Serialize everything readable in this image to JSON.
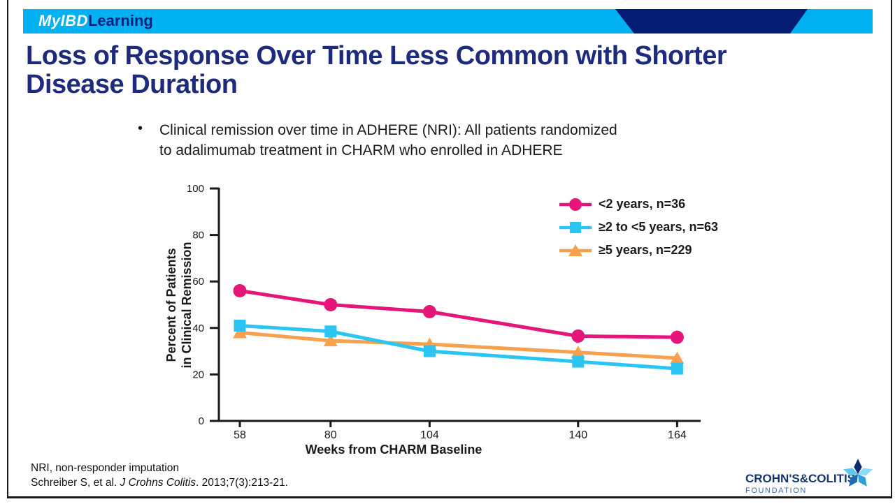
{
  "header": {
    "logo_my_ibd": "MyIBD",
    "logo_learning": "Learning",
    "bar_color": "#00b0f0",
    "shape_color": "#041d74"
  },
  "title": {
    "line1": "Loss of Response Over Time Less Common with Shorter",
    "line2": "Disease Duration",
    "color": "#1e2b7d"
  },
  "bullet": {
    "marker": "•",
    "line1": "Clinical remission over time in ADHERE (NRI): All patients randomized",
    "line2": "to adalimumab treatment in CHARM who enrolled in ADHERE"
  },
  "chart_data": {
    "type": "line",
    "x": [
      58,
      80,
      104,
      140,
      164
    ],
    "xlabel": "Weeks from CHARM Baseline",
    "ylabel_line1": "Percent of Patients",
    "ylabel_line2": "in Clinical Remission",
    "ylim": [
      0,
      100
    ],
    "y_ticks": [
      0,
      20,
      40,
      60,
      80,
      100
    ],
    "grid": false,
    "legend_position": "top-right-inside",
    "series": [
      {
        "name": "<2 years, n=36",
        "marker": "circle",
        "color": "#e6157a",
        "values": [
          56,
          50,
          47,
          36.5,
          36
        ]
      },
      {
        "name": "≥2 to <5 years, n=63",
        "marker": "square",
        "color": "#2bc5f4",
        "values": [
          41,
          38.5,
          30,
          25.5,
          22.5
        ]
      },
      {
        "name": "≥5 years, n=229",
        "marker": "triangle",
        "color": "#f7a04d",
        "values": [
          38,
          34.5,
          33,
          29.5,
          27
        ]
      }
    ]
  },
  "footer": {
    "line1": "NRI, non-responder imputation",
    "cite_pre": "Schreiber S, et al. ",
    "cite_journal": "J Crohns Colitis",
    "cite_post": ". 2013;7(3):213-21."
  },
  "foundation_logo": {
    "name_line": "CROHN'S&COLITIS",
    "sub_line": "FOUNDATION",
    "name_color": "#16356e",
    "sub_color": "#3a6ab5"
  }
}
